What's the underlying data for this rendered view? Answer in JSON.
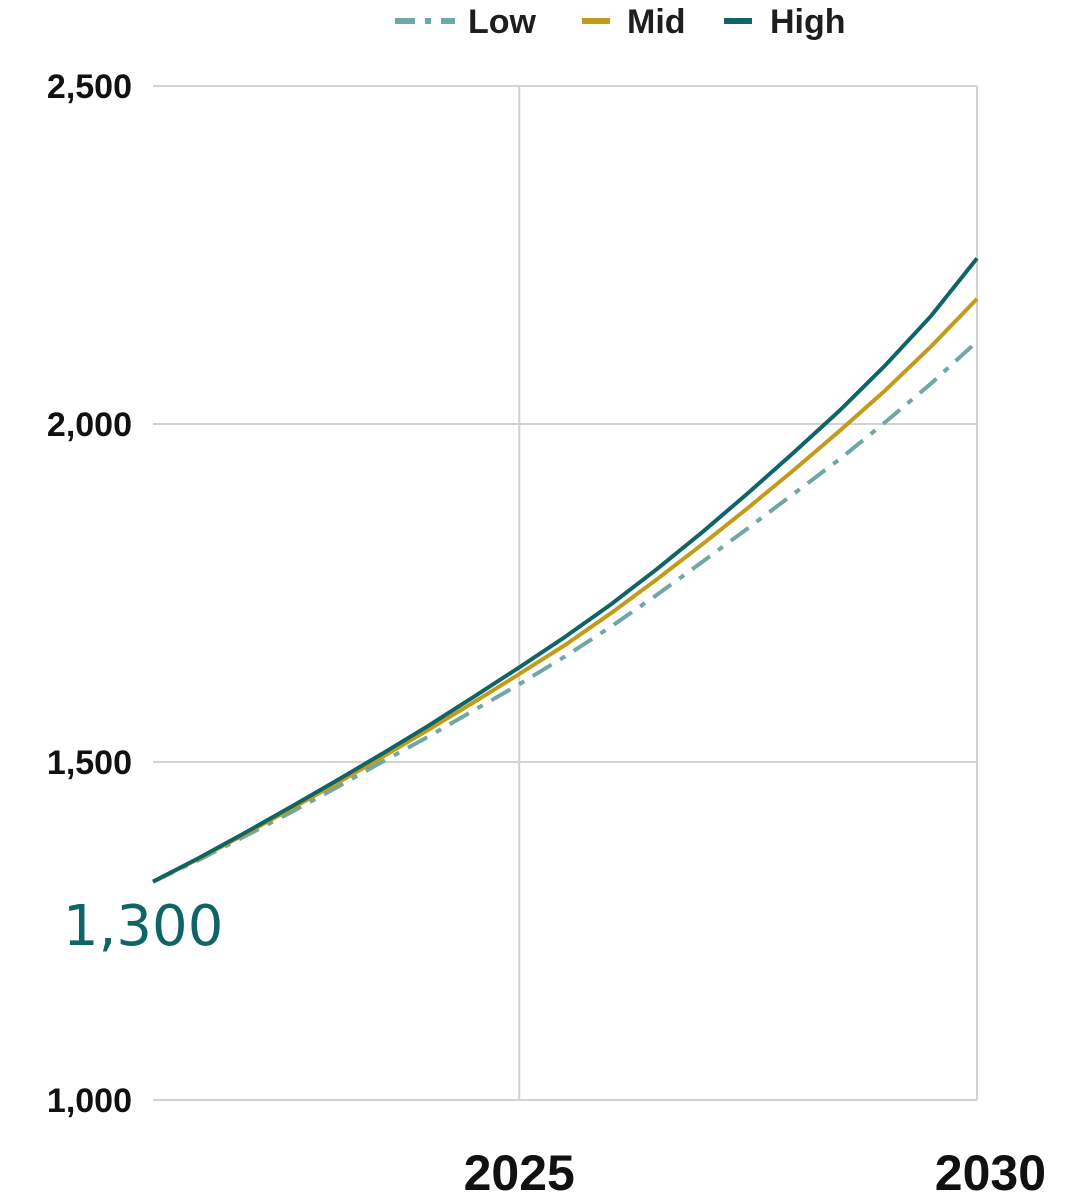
{
  "chart_data": {
    "type": "line",
    "xlim": [
      2021,
      2030
    ],
    "ylim": [
      1000,
      2500
    ],
    "y_ticks": [
      1000,
      1500,
      2000,
      2500
    ],
    "y_tick_labels": [
      "1,000",
      "1,500",
      "2,000",
      "2,500"
    ],
    "x_ticks": [
      2025,
      2030
    ],
    "x_tick_labels": [
      "2025",
      "2030"
    ],
    "grid": true,
    "legend_position": "top",
    "x": [
      2021,
      2021.5,
      2022,
      2022.5,
      2023,
      2023.5,
      2024,
      2024.5,
      2025,
      2025.5,
      2026,
      2026.5,
      2027,
      2027.5,
      2028,
      2028.5,
      2029,
      2029.5,
      2030
    ],
    "series": [
      {
        "name": "Low",
        "style": "dashdot",
        "color": "#6ea7a5",
        "values": [
          1323,
          1355,
          1390,
          1425,
          1462,
          1500,
          1537,
          1576,
          1615,
          1656,
          1700,
          1747,
          1796,
          1846,
          1897,
          1948,
          2003,
          2060,
          2122
        ]
      },
      {
        "name": "Mid",
        "style": "solid",
        "color": "#c49a19",
        "values": [
          1323,
          1357,
          1393,
          1430,
          1468,
          1507,
          1547,
          1588,
          1630,
          1673,
          1720,
          1770,
          1822,
          1876,
          1932,
          1990,
          2050,
          2115,
          2185
        ]
      },
      {
        "name": "High",
        "style": "solid",
        "color": "#0f6466",
        "values": [
          1323,
          1358,
          1395,
          1433,
          1472,
          1512,
          1553,
          1596,
          1640,
          1685,
          1733,
          1785,
          1840,
          1898,
          1958,
          2020,
          2087,
          2160,
          2245
        ]
      }
    ],
    "annotations": [
      {
        "text": "1,300",
        "color": "#0f6466"
      }
    ]
  }
}
